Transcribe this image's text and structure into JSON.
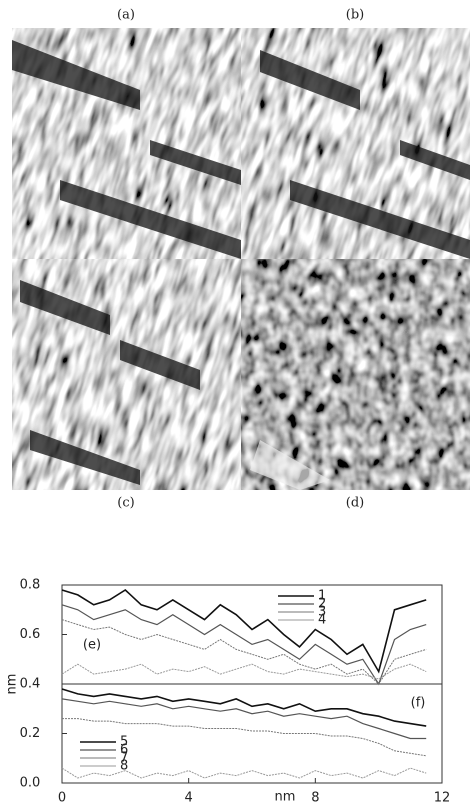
{
  "figure": {
    "panels": [
      "(a)",
      "(b)",
      "(c)",
      "(d)"
    ]
  },
  "chart_data": {
    "type": "line",
    "annotations": [
      "(e)",
      "(f)"
    ],
    "xlabel": "nm",
    "ylabel": "nm",
    "x": [
      0,
      0.5,
      1,
      1.5,
      2,
      2.5,
      3,
      3.5,
      4,
      4.5,
      5,
      5.5,
      6,
      6.5,
      7,
      7.5,
      8,
      8.5,
      9,
      9.5,
      10,
      10.5,
      11,
      11.5
    ],
    "series": [
      {
        "name": "1",
        "color": "#111111",
        "values": [
          0.78,
          0.76,
          0.72,
          0.74,
          0.78,
          0.72,
          0.7,
          0.74,
          0.7,
          0.66,
          0.72,
          0.68,
          0.62,
          0.66,
          0.6,
          0.55,
          0.62,
          0.58,
          0.52,
          0.56,
          0.45,
          0.7,
          0.72,
          0.74
        ]
      },
      {
        "name": "2",
        "color": "#555555",
        "values": [
          0.72,
          0.7,
          0.66,
          0.68,
          0.7,
          0.66,
          0.64,
          0.68,
          0.64,
          0.6,
          0.64,
          0.6,
          0.56,
          0.58,
          0.54,
          0.5,
          0.56,
          0.52,
          0.48,
          0.5,
          0.4,
          0.58,
          0.62,
          0.64
        ]
      },
      {
        "name": "3",
        "color": "#777777",
        "values": [
          0.66,
          0.64,
          0.62,
          0.63,
          0.6,
          0.58,
          0.6,
          0.58,
          0.56,
          0.54,
          0.58,
          0.54,
          0.52,
          0.5,
          0.52,
          0.48,
          0.46,
          0.48,
          0.44,
          0.46,
          0.4,
          0.5,
          0.52,
          0.54
        ]
      },
      {
        "name": "4",
        "color": "#999999",
        "values": [
          0.44,
          0.48,
          0.44,
          0.45,
          0.46,
          0.48,
          0.44,
          0.46,
          0.45,
          0.47,
          0.44,
          0.46,
          0.48,
          0.45,
          0.44,
          0.46,
          0.45,
          0.44,
          0.43,
          0.44,
          0.42,
          0.46,
          0.48,
          0.45
        ]
      },
      {
        "name": "5",
        "color": "#111111",
        "values": [
          0.38,
          0.36,
          0.35,
          0.36,
          0.35,
          0.34,
          0.35,
          0.33,
          0.34,
          0.33,
          0.32,
          0.34,
          0.31,
          0.32,
          0.3,
          0.32,
          0.29,
          0.3,
          0.3,
          0.28,
          0.27,
          0.25,
          0.24,
          0.23
        ]
      },
      {
        "name": "6",
        "color": "#555555",
        "values": [
          0.34,
          0.33,
          0.32,
          0.33,
          0.32,
          0.31,
          0.32,
          0.3,
          0.31,
          0.3,
          0.29,
          0.3,
          0.28,
          0.29,
          0.27,
          0.28,
          0.27,
          0.26,
          0.27,
          0.24,
          0.22,
          0.2,
          0.18,
          0.18
        ]
      },
      {
        "name": "7",
        "color": "#777777",
        "values": [
          0.26,
          0.26,
          0.25,
          0.25,
          0.24,
          0.24,
          0.24,
          0.23,
          0.23,
          0.22,
          0.22,
          0.22,
          0.21,
          0.21,
          0.2,
          0.2,
          0.2,
          0.19,
          0.19,
          0.18,
          0.16,
          0.13,
          0.12,
          0.11
        ]
      },
      {
        "name": "8",
        "color": "#999999",
        "values": [
          0.06,
          0.02,
          0.04,
          0.03,
          0.05,
          0.02,
          0.04,
          0.03,
          0.05,
          0.02,
          0.04,
          0.03,
          0.05,
          0.03,
          0.04,
          0.02,
          0.05,
          0.03,
          0.04,
          0.02,
          0.05,
          0.03,
          0.06,
          0.04
        ]
      }
    ],
    "xlim": [
      0,
      12
    ],
    "xticks": [
      0,
      4,
      8,
      12
    ],
    "ylim": [
      0,
      0.8
    ],
    "yticks": [
      {
        "value": 0,
        "label": "0.0"
      },
      0.2,
      0.4,
      0.6,
      0.8
    ]
  }
}
